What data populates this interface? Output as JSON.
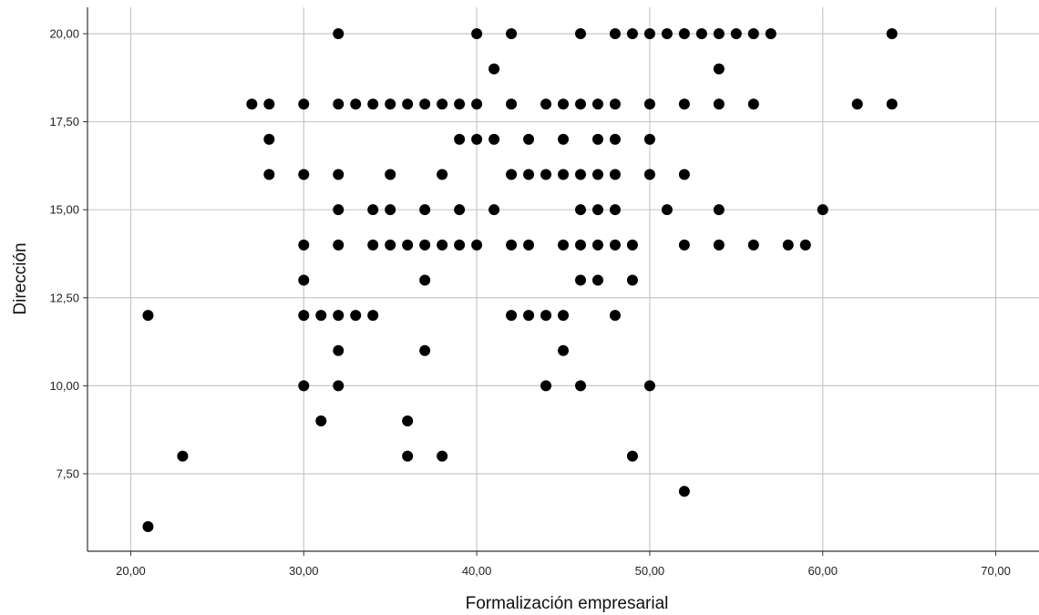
{
  "chart_data": {
    "type": "scatter",
    "title": "",
    "xlabel": "Formalización empresarial",
    "ylabel": "Dirección",
    "xlim": [
      17.5,
      72.5
    ],
    "ylim": [
      5.3,
      20.75
    ],
    "x_ticks": [
      20,
      30,
      40,
      50,
      60,
      70
    ],
    "x_tick_labels": [
      "20,00",
      "30,00",
      "40,00",
      "50,00",
      "60,00",
      "70,00"
    ],
    "y_ticks": [
      7.5,
      10,
      12.5,
      15,
      17.5,
      20
    ],
    "y_tick_labels": [
      "7,50",
      "10,00",
      "12,50",
      "15,00",
      "17,50",
      "20,00"
    ],
    "grid": true,
    "legend": "none",
    "point_color": "#000000",
    "grid_color": "#c8c8c8",
    "points": [
      [
        32,
        20
      ],
      [
        40,
        20
      ],
      [
        42,
        20
      ],
      [
        46,
        20
      ],
      [
        48,
        20
      ],
      [
        49,
        20
      ],
      [
        50,
        20
      ],
      [
        51,
        20
      ],
      [
        52,
        20
      ],
      [
        53,
        20
      ],
      [
        54,
        20
      ],
      [
        55,
        20
      ],
      [
        56,
        20
      ],
      [
        57,
        20
      ],
      [
        64,
        20
      ],
      [
        41,
        19
      ],
      [
        54,
        19
      ],
      [
        27,
        18
      ],
      [
        28,
        18
      ],
      [
        30,
        18
      ],
      [
        32,
        18
      ],
      [
        33,
        18
      ],
      [
        34,
        18
      ],
      [
        35,
        18
      ],
      [
        36,
        18
      ],
      [
        37,
        18
      ],
      [
        38,
        18
      ],
      [
        39,
        18
      ],
      [
        40,
        18
      ],
      [
        42,
        18
      ],
      [
        44,
        18
      ],
      [
        45,
        18
      ],
      [
        46,
        18
      ],
      [
        47,
        18
      ],
      [
        48,
        18
      ],
      [
        50,
        18
      ],
      [
        52,
        18
      ],
      [
        54,
        18
      ],
      [
        56,
        18
      ],
      [
        62,
        18
      ],
      [
        64,
        18
      ],
      [
        28,
        17
      ],
      [
        39,
        17
      ],
      [
        40,
        17
      ],
      [
        41,
        17
      ],
      [
        43,
        17
      ],
      [
        45,
        17
      ],
      [
        47,
        17
      ],
      [
        48,
        17
      ],
      [
        50,
        17
      ],
      [
        28,
        16
      ],
      [
        30,
        16
      ],
      [
        32,
        16
      ],
      [
        35,
        16
      ],
      [
        38,
        16
      ],
      [
        42,
        16
      ],
      [
        43,
        16
      ],
      [
        44,
        16
      ],
      [
        45,
        16
      ],
      [
        46,
        16
      ],
      [
        47,
        16
      ],
      [
        48,
        16
      ],
      [
        50,
        16
      ],
      [
        52,
        16
      ],
      [
        32,
        15
      ],
      [
        34,
        15
      ],
      [
        35,
        15
      ],
      [
        37,
        15
      ],
      [
        39,
        15
      ],
      [
        41,
        15
      ],
      [
        46,
        15
      ],
      [
        47,
        15
      ],
      [
        48,
        15
      ],
      [
        51,
        15
      ],
      [
        54,
        15
      ],
      [
        60,
        15
      ],
      [
        30,
        14
      ],
      [
        32,
        14
      ],
      [
        34,
        14
      ],
      [
        35,
        14
      ],
      [
        36,
        14
      ],
      [
        37,
        14
      ],
      [
        38,
        14
      ],
      [
        39,
        14
      ],
      [
        40,
        14
      ],
      [
        42,
        14
      ],
      [
        43,
        14
      ],
      [
        45,
        14
      ],
      [
        46,
        14
      ],
      [
        47,
        14
      ],
      [
        48,
        14
      ],
      [
        49,
        14
      ],
      [
        52,
        14
      ],
      [
        54,
        14
      ],
      [
        56,
        14
      ],
      [
        58,
        14
      ],
      [
        59,
        14
      ],
      [
        30,
        13
      ],
      [
        37,
        13
      ],
      [
        46,
        13
      ],
      [
        47,
        13
      ],
      [
        49,
        13
      ],
      [
        21,
        12
      ],
      [
        30,
        12
      ],
      [
        31,
        12
      ],
      [
        32,
        12
      ],
      [
        33,
        12
      ],
      [
        34,
        12
      ],
      [
        42,
        12
      ],
      [
        43,
        12
      ],
      [
        44,
        12
      ],
      [
        45,
        12
      ],
      [
        48,
        12
      ],
      [
        32,
        11
      ],
      [
        37,
        11
      ],
      [
        45,
        11
      ],
      [
        30,
        10
      ],
      [
        32,
        10
      ],
      [
        44,
        10
      ],
      [
        46,
        10
      ],
      [
        50,
        10
      ],
      [
        31,
        9
      ],
      [
        36,
        9
      ],
      [
        23,
        8
      ],
      [
        36,
        8
      ],
      [
        38,
        8
      ],
      [
        49,
        8
      ],
      [
        52,
        7
      ],
      [
        21,
        6
      ]
    ]
  }
}
